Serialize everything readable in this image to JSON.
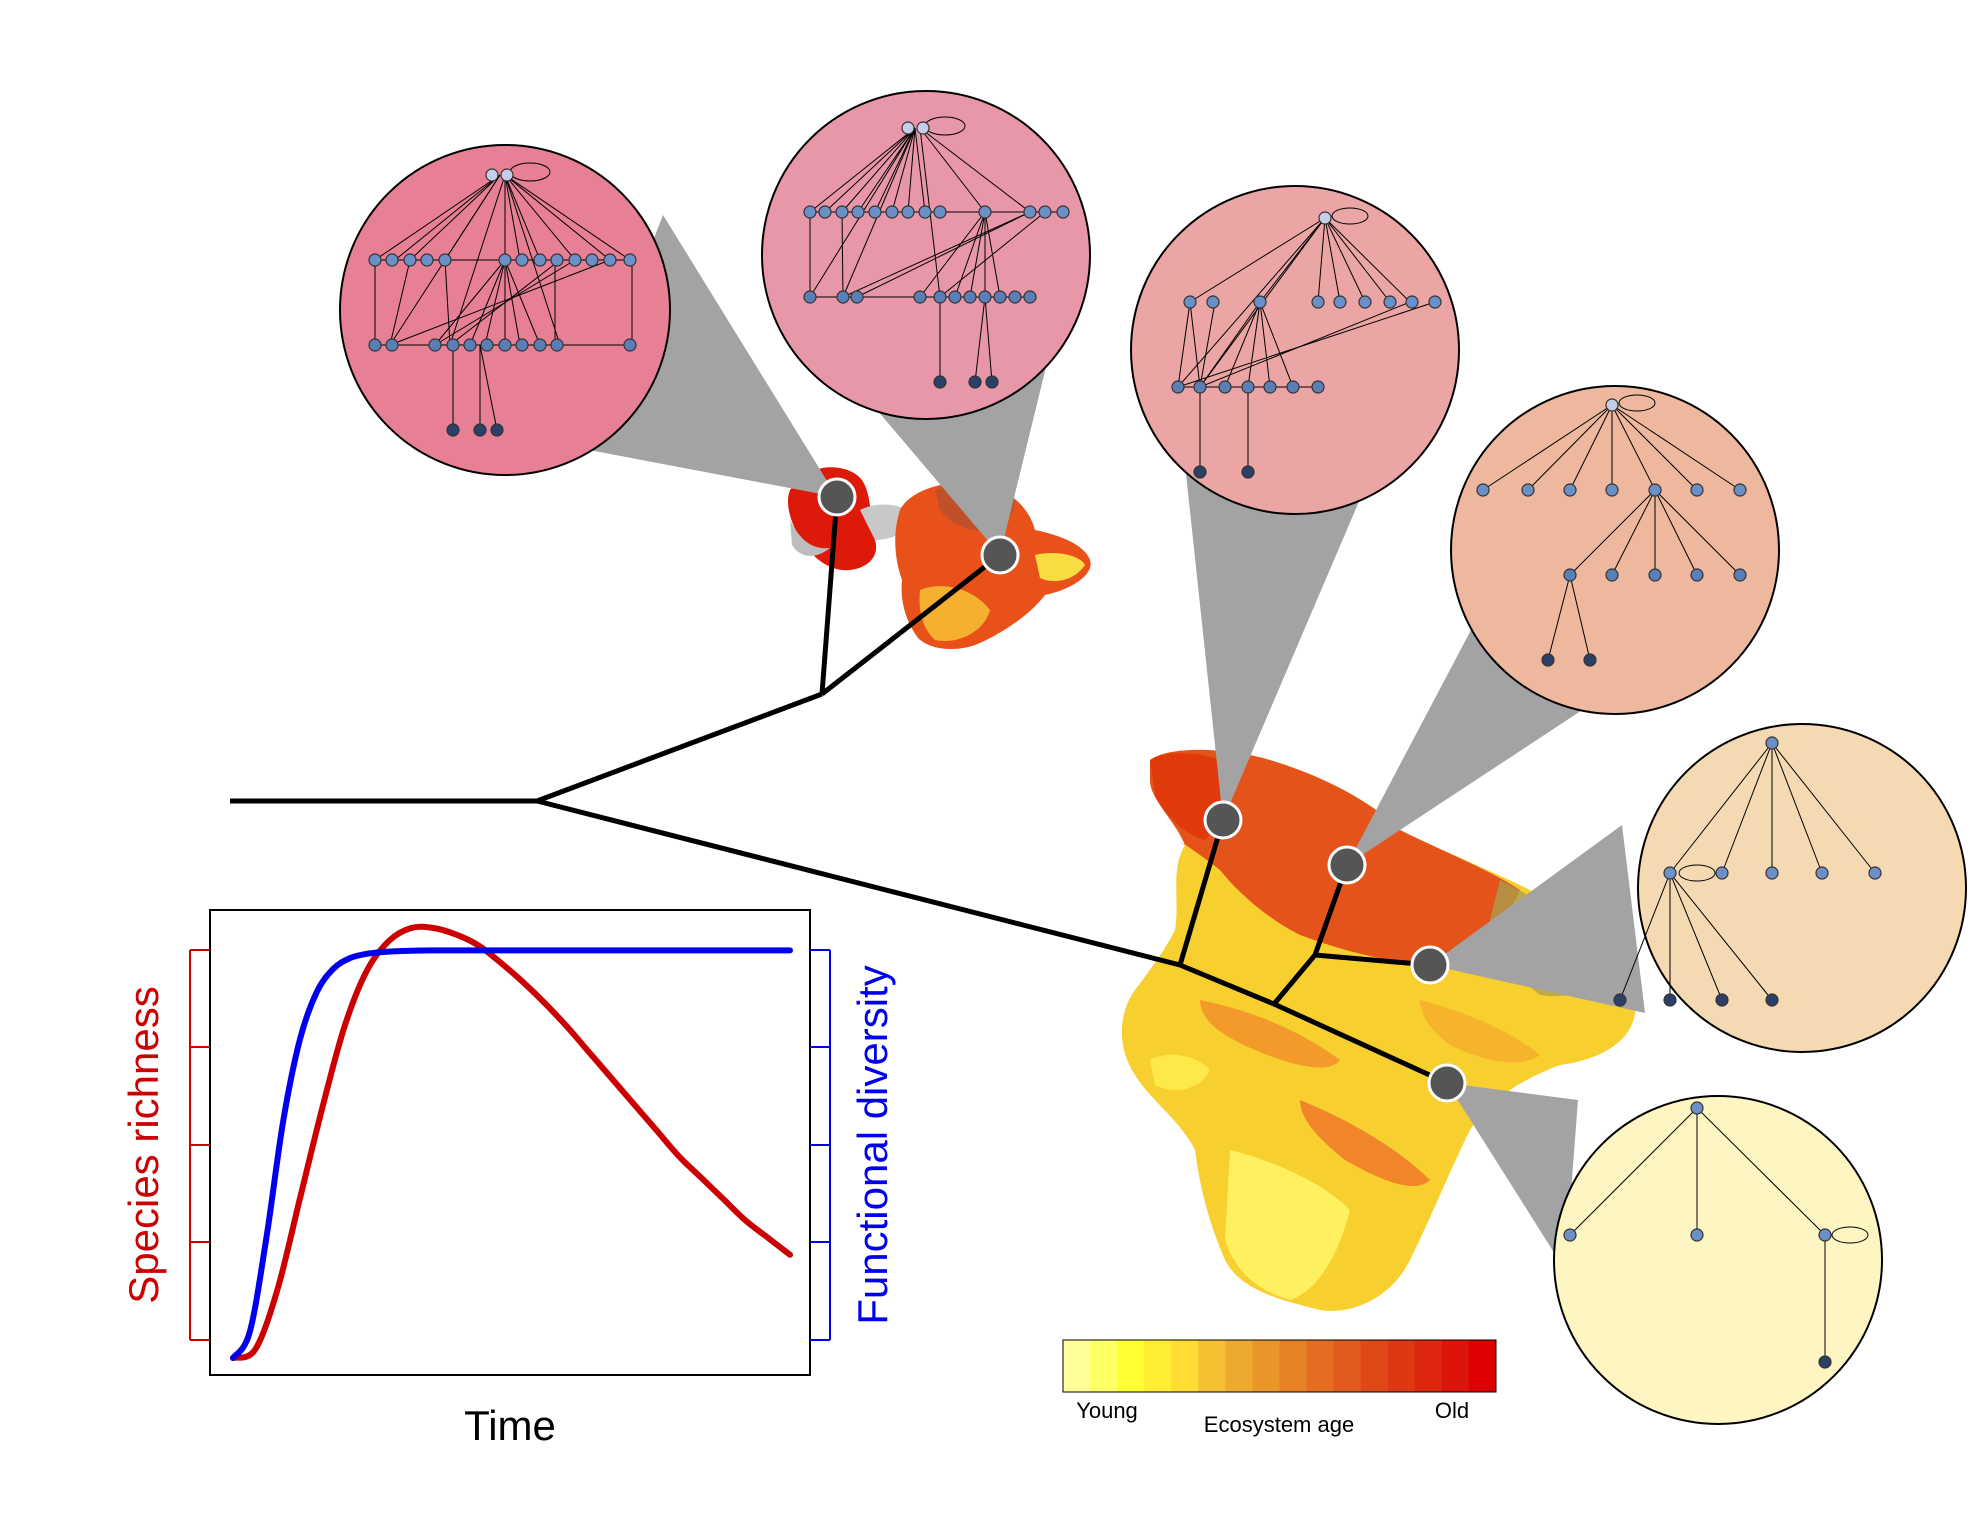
{
  "figure": {
    "colors": {
      "red_curve": "#cc0000",
      "blue_curve": "#0000ee",
      "tree": "#000000",
      "node": "#555555",
      "cone": "#a3a3a3"
    }
  },
  "chart_data": {
    "type": "line",
    "title": "",
    "xlabel": "Time",
    "ylabel_left": "Species richness",
    "ylabel_right": "Functional diversity",
    "tick_labels": "none",
    "xlim": [
      0,
      1
    ],
    "ylim": [
      0,
      1
    ],
    "series": [
      {
        "name": "Species richness",
        "axis": "left",
        "color": "#cc0000",
        "x": [
          0.0,
          0.04,
          0.08,
          0.12,
          0.16,
          0.2,
          0.24,
          0.28,
          0.32,
          0.36,
          0.4,
          0.44,
          0.48,
          0.52,
          0.56,
          0.6,
          0.64,
          0.68,
          0.72,
          0.76,
          0.8,
          0.84,
          0.88,
          0.92,
          0.96,
          1.0
        ],
        "values": [
          0.0,
          0.02,
          0.16,
          0.37,
          0.58,
          0.77,
          0.9,
          0.97,
          1.0,
          1.0,
          0.985,
          0.96,
          0.92,
          0.875,
          0.825,
          0.77,
          0.71,
          0.65,
          0.59,
          0.53,
          0.47,
          0.42,
          0.37,
          0.32,
          0.28,
          0.24
        ]
      },
      {
        "name": "Functional diversity",
        "axis": "right",
        "color": "#0000ee",
        "x": [
          0.0,
          0.03,
          0.06,
          0.09,
          0.12,
          0.15,
          0.18,
          0.21,
          0.24,
          0.28,
          0.32,
          0.36,
          0.4,
          0.5,
          0.6,
          0.7,
          0.8,
          0.9,
          1.0
        ],
        "values": [
          0.0,
          0.06,
          0.28,
          0.55,
          0.74,
          0.85,
          0.905,
          0.93,
          0.94,
          0.945,
          0.947,
          0.948,
          0.948,
          0.948,
          0.948,
          0.948,
          0.948,
          0.948,
          0.948
        ]
      }
    ]
  },
  "colorbar": {
    "title": "Ecosystem age",
    "low_label": "Young",
    "high_label": "Old",
    "colors": [
      "#ffff99",
      "#ffff66",
      "#ffff33",
      "#ffee33",
      "#ffdd33",
      "#f6c033",
      "#ecab2e",
      "#e8952a",
      "#e68126",
      "#e46d22",
      "#e25a1e",
      "#e04818",
      "#de3713",
      "#dd260e",
      "#dc1409",
      "#dc0000"
    ]
  },
  "islands": {
    "colors": [
      "#e53000",
      "#f07020",
      "#f5a030",
      "#f7cc30",
      "#ffe840",
      "#c0c0c0"
    ]
  },
  "webs": [
    {
      "fill": "#e88095"
    },
    {
      "fill": "#e897a8"
    },
    {
      "fill": "#eba5a5"
    },
    {
      "fill": "#edb89e"
    },
    {
      "fill": "#f5d9b3"
    },
    {
      "fill": "#fdf6c3"
    }
  ]
}
